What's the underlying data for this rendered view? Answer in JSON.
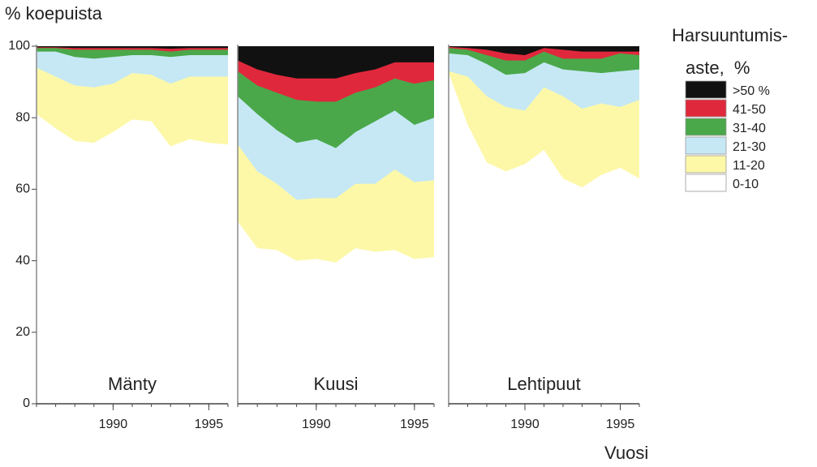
{
  "chart_data": {
    "type": "stacked_area",
    "y_label": "% koepuista",
    "x_label": "Vuosi",
    "legend_title": [
      "Harsuuntumis-",
      "aste,  %"
    ],
    "panels": [
      "Mänty",
      "Kuusi",
      "Lehtipuut"
    ],
    "x": [
      1986,
      1987,
      1988,
      1989,
      1990,
      1991,
      1992,
      1993,
      1994,
      1995,
      1996
    ],
    "xlim": [
      1986,
      1996
    ],
    "xticks": [
      1990,
      1995
    ],
    "ylim": [
      0,
      100
    ],
    "yticks": [
      0,
      20,
      40,
      60,
      80,
      100
    ],
    "series": [
      {
        "name": "0-10",
        "color": "#ffffff",
        "values": [
          [
            81,
            77,
            73.5,
            73,
            76,
            79.5,
            79,
            72,
            74,
            73,
            72.5
          ],
          [
            51,
            43.5,
            43,
            40,
            40.5,
            39.5,
            43.5,
            42.5,
            43,
            40.5,
            41
          ],
          [
            92.5,
            78,
            67.5,
            65,
            67,
            71,
            63,
            60.5,
            64,
            66,
            63
          ]
        ]
      },
      {
        "name": "11-20",
        "color": "#fdf8a8",
        "values": [
          [
            13,
            14.5,
            15.5,
            15.5,
            13.5,
            13,
            13,
            17.5,
            17.5,
            18.5,
            19
          ],
          [
            21.5,
            21.5,
            18.5,
            17,
            17,
            18,
            18,
            19,
            22.5,
            21.5,
            21.5
          ],
          [
            0.5,
            13.5,
            18.5,
            18,
            15,
            17.5,
            23,
            22,
            20,
            17,
            22
          ]
        ]
      },
      {
        "name": "21-30",
        "color": "#c6e8f4",
        "values": [
          [
            4.5,
            7,
            8,
            8,
            7.5,
            5,
            5.5,
            7.5,
            6,
            6,
            6
          ],
          [
            13.5,
            16,
            15,
            16,
            16.5,
            14,
            14.5,
            17.5,
            16.5,
            16,
            17.5
          ],
          [
            5,
            6,
            9,
            9,
            10.5,
            7,
            7.5,
            10.5,
            8.5,
            10,
            8.5
          ]
        ]
      },
      {
        "name": "31-40",
        "color": "#4aa84a",
        "values": [
          [
            1,
            1,
            2,
            2.5,
            2,
            1.5,
            1.5,
            1.5,
            1.5,
            1.5,
            1.5
          ],
          [
            7,
            8,
            10.5,
            12,
            10.5,
            13,
            11,
            9.5,
            9,
            11.5,
            10.5
          ],
          [
            1.5,
            1.5,
            2.5,
            4,
            3.5,
            3,
            3,
            3.5,
            4,
            5,
            4
          ]
        ]
      },
      {
        "name": "41-50",
        "color": "#e0283c",
        "values": [
          [
            0.2,
            0.2,
            0.5,
            0.5,
            0.5,
            0.5,
            0.5,
            0.8,
            0.5,
            0.5,
            0.5
          ],
          [
            3,
            4.5,
            5,
            6,
            6.5,
            6.5,
            5.5,
            5,
            4.5,
            6,
            5
          ],
          [
            0.3,
            0.5,
            1.5,
            2,
            1.5,
            1,
            2.5,
            2,
            2,
            0.5,
            1
          ]
        ]
      },
      {
        "name": ">50 %",
        "color": "#111111",
        "values": [
          [
            0.3,
            0.3,
            0.5,
            0.5,
            0.5,
            0.5,
            0.5,
            0.7,
            0.5,
            0.5,
            0.5
          ],
          [
            4,
            6.5,
            8,
            9,
            9,
            9,
            7.5,
            6.5,
            4.5,
            4.5,
            4.5
          ],
          [
            0.2,
            0.5,
            1,
            2,
            2.5,
            0.5,
            1,
            1.5,
            1.5,
            1.5,
            1.5
          ]
        ]
      }
    ]
  }
}
